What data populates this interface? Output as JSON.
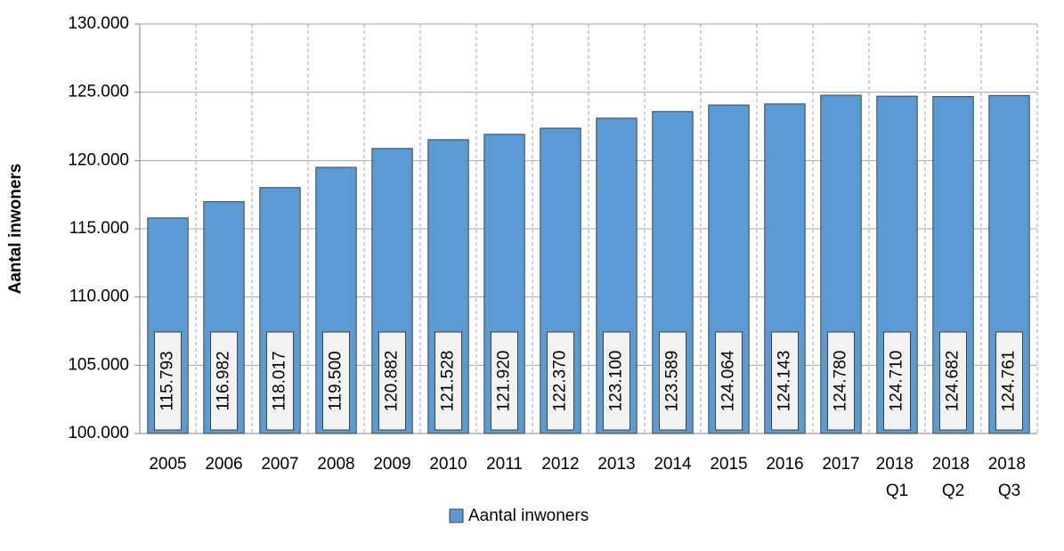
{
  "chart_data": {
    "type": "bar",
    "y_axis_label": "Aantal inwoners",
    "categories": [
      "2005",
      "2006",
      "2007",
      "2008",
      "2009",
      "2010",
      "2011",
      "2012",
      "2013",
      "2014",
      "2015",
      "2016",
      "2017",
      "2018 Q1",
      "2018 Q2",
      "2018 Q3"
    ],
    "series": [
      {
        "name": "Aantal inwoners",
        "color": "#5b9bd5",
        "values": [
          115793,
          116982,
          118017,
          119500,
          120882,
          121528,
          121920,
          122370,
          123100,
          123589,
          124064,
          124143,
          124780,
          124710,
          124682,
          124761
        ],
        "value_labels": [
          "115.793",
          "116.982",
          "118.017",
          "119.500",
          "120.882",
          "121.528",
          "121.920",
          "122.370",
          "123.100",
          "123.589",
          "124.064",
          "124.143",
          "124.780",
          "124.710",
          "124.682",
          "124.761"
        ]
      }
    ],
    "ylim": [
      100000,
      130000
    ],
    "yticks": [
      {
        "value": 100000,
        "label": "100.000"
      },
      {
        "value": 105000,
        "label": "105.000"
      },
      {
        "value": 110000,
        "label": "110.000"
      },
      {
        "value": 115000,
        "label": "115.000"
      },
      {
        "value": 120000,
        "label": "120.000"
      },
      {
        "value": 125000,
        "label": "125.000"
      },
      {
        "value": 130000,
        "label": "130.000"
      }
    ],
    "grid": true,
    "legend": "bottom"
  }
}
